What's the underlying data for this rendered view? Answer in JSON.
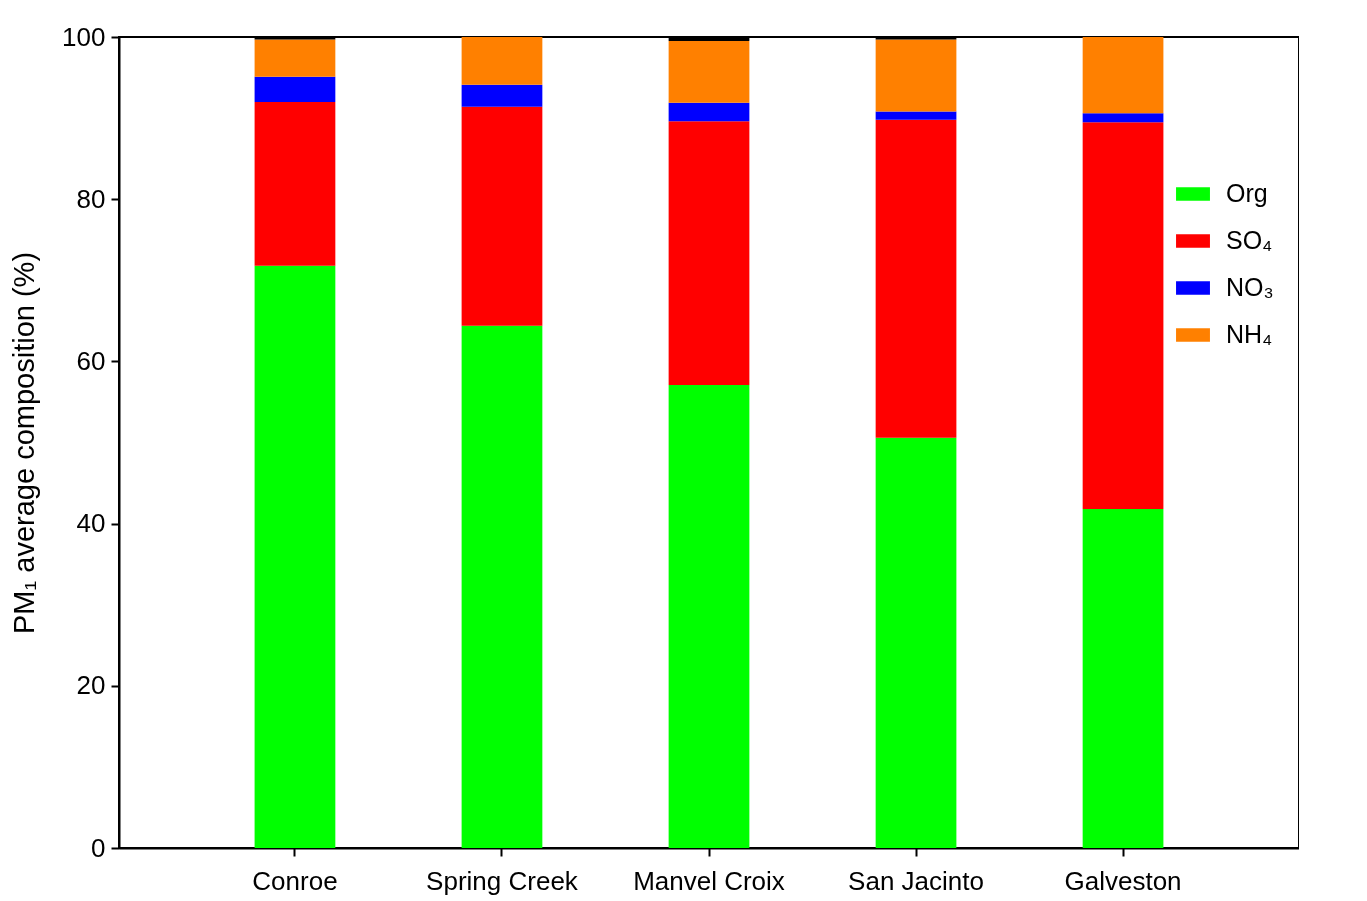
{
  "chart_data": {
    "type": "bar",
    "stacked": true,
    "ylabel": "PM₁ average composition (%)",
    "categories": [
      "Conroe",
      "Spring Creek",
      "Manvel Croix",
      "San Jacinto",
      "Galveston"
    ],
    "series": [
      {
        "name": "Org",
        "color": "#00ff00",
        "values": [
          71.8,
          64.4,
          57.1,
          50.6,
          41.8
        ]
      },
      {
        "name": "SO₄",
        "color": "#ff0000",
        "values": [
          20.2,
          27.0,
          32.5,
          39.2,
          47.7
        ]
      },
      {
        "name": "NO₃",
        "color": "#0000ff",
        "values": [
          3.1,
          2.7,
          2.3,
          1.0,
          1.1
        ]
      },
      {
        "name": "NH₄",
        "color": "#ff8000",
        "values": [
          4.6,
          5.9,
          7.6,
          8.9,
          9.4
        ]
      },
      {
        "color": "#000000",
        "values": [
          0.3,
          null,
          0.5,
          0.3,
          null
        ]
      }
    ],
    "ylim": [
      0,
      100
    ],
    "yticks": [
      0,
      20,
      40,
      60,
      80,
      100
    ],
    "grid": false,
    "legend": "top right"
  }
}
